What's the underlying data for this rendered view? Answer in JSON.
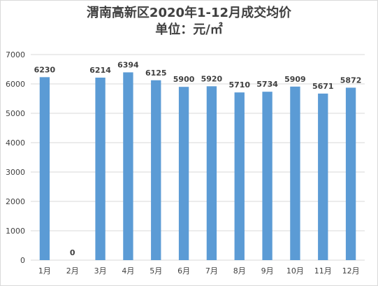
{
  "chart_data": {
    "type": "bar",
    "title": "渭南高新区2020年1-12月成交均价",
    "subtitle": "单位：元/㎡",
    "categories": [
      "1月",
      "2月",
      "3月",
      "4月",
      "5月",
      "6月",
      "7月",
      "8月",
      "9月",
      "10月",
      "11月",
      "12月"
    ],
    "values": [
      6230,
      0,
      6214,
      6394,
      6125,
      5900,
      5920,
      5710,
      5734,
      5909,
      5671,
      5872
    ],
    "ylim": [
      0,
      7000
    ],
    "yticks": [
      0,
      1000,
      2000,
      3000,
      4000,
      5000,
      6000,
      7000
    ],
    "grid": true,
    "legend": "none",
    "colors": {
      "bar": "#5b9bd5",
      "grid": "#d9d9d9",
      "text": "#404040"
    }
  }
}
